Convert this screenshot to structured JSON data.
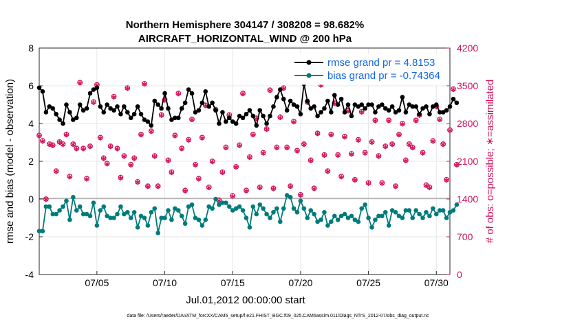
{
  "chart_data": {
    "type": "line",
    "title_line1": "Northern Hemisphere 304147 / 308208 = 98.682%",
    "title_line2": "AIRCRAFT_HORIZONTAL_WIND @ 200 hPa",
    "xlabel": "Jul.01,2012 00:00:00 start",
    "ylabel_left": "rmse and bias (model - observation)",
    "ylabel_right": "# of obs: o=possible; ∗=assimilated",
    "footnote": "data file: /Users/raeder/DAI/ATM_forcXX/CAM6_setup/f.e21.FHIST_BGC.f09_025.CAM6assim.011/Diags_NTrS_2012-07/obs_diag_output.nc",
    "x_range_days": [
      0.75,
      31.0
    ],
    "xticks": [
      {
        "day": 5,
        "label": "07/05"
      },
      {
        "day": 10,
        "label": "07/10"
      },
      {
        "day": 15,
        "label": "07/15"
      },
      {
        "day": 20,
        "label": "07/20"
      },
      {
        "day": 25,
        "label": "07/25"
      },
      {
        "day": 30,
        "label": "07/30"
      }
    ],
    "ylim_left": [
      -4,
      8
    ],
    "yticks_left": [
      "-4",
      "-2",
      "0",
      "2",
      "4",
      "6",
      "8"
    ],
    "ylim_right": [
      0,
      4200
    ],
    "yticks_right": [
      "0",
      "700",
      "1400",
      "2100",
      "2800",
      "3500",
      "4200"
    ],
    "legend": [
      {
        "label": "rmse grand pr = 4.8153",
        "color": "#000000"
      },
      {
        "label": "bias grand pr = -0.74364",
        "color": "#007b7b"
      }
    ],
    "colors": {
      "rmse": "#000000",
      "bias": "#007b7b",
      "obs": "#d4105a",
      "zero_line": "#a8a8a8",
      "legend_text": "#1466e6"
    },
    "series": [
      {
        "name": "rmse",
        "axis": "left",
        "start_day": 0.75,
        "step_day": 0.25,
        "values": [
          5.9,
          5.7,
          4.6,
          4.9,
          4.8,
          4.5,
          4.2,
          4.0,
          5.0,
          4.6,
          4.2,
          4.3,
          5.0,
          4.7,
          4.8,
          5.6,
          5.8,
          5.9,
          4.9,
          4.6,
          5.0,
          4.8,
          4.7,
          4.9,
          4.5,
          4.9,
          4.6,
          4.3,
          4.5,
          4.9,
          4.5,
          4.2,
          4.1,
          3.9,
          5.2,
          5.0,
          4.8,
          5.6,
          4.8,
          4.2,
          4.3,
          4.3,
          4.8,
          5.1,
          5.8,
          5.6,
          4.6,
          4.7,
          5.1,
          5.7,
          4.9,
          5.1,
          4.7,
          4.0,
          4.6,
          4.1,
          4.3,
          4.1,
          4.0,
          4.4,
          4.3,
          4.5,
          4.7,
          4.4,
          3.9,
          4.7,
          4.4,
          4.0,
          4.4,
          4.9,
          5.4,
          5.8,
          5.3,
          4.7,
          5.2,
          5.0,
          4.9,
          4.5,
          6.1,
          5.2,
          4.8,
          4.9,
          4.4,
          4.6,
          4.8,
          5.2,
          4.6,
          5.5,
          5.0,
          5.3,
          4.6,
          5.0,
          4.4,
          5.0,
          4.9,
          5.0,
          4.8,
          5.0,
          5.0,
          4.6,
          4.9,
          5.0,
          4.8,
          4.7,
          4.9,
          4.6,
          4.7,
          5.4,
          4.6,
          5.0,
          4.9,
          4.9,
          4.5,
          4.8,
          4.9,
          4.5,
          4.9,
          5.0,
          4.6,
          4.6,
          4.7,
          4.9,
          5.3,
          5.1
        ]
      },
      {
        "name": "bias",
        "axis": "left",
        "start_day": 0.75,
        "step_day": 0.25,
        "values": [
          -1.7,
          -1.7,
          -0.4,
          -0.4,
          -0.8,
          -0.8,
          -0.6,
          -0.4,
          -0.1,
          -1.1,
          0.1,
          -0.6,
          -0.4,
          -0.8,
          -0.8,
          -0.9,
          -0.2,
          -1.4,
          -0.6,
          -0.4,
          -0.9,
          -1.0,
          -1.0,
          -0.8,
          -0.4,
          -0.8,
          -0.7,
          -1.0,
          -0.7,
          -1.5,
          -0.9,
          -1.0,
          -1.4,
          -0.7,
          -0.5,
          -1.8,
          -1.0,
          -1.0,
          -0.6,
          -1.1,
          -0.5,
          -0.6,
          -0.9,
          -1.3,
          -0.4,
          -0.3,
          -1.0,
          -1.1,
          -1.4,
          -1.1,
          -0.4,
          -0.5,
          0.0,
          -0.3,
          -0.2,
          -0.2,
          -0.4,
          -0.6,
          -0.5,
          -0.4,
          -0.6,
          -1.0,
          -1.5,
          -0.4,
          -0.8,
          -0.3,
          -0.5,
          -0.8,
          -1.0,
          -0.7,
          -0.5,
          -1.2,
          -0.5,
          0.2,
          0.1,
          -0.5,
          -0.7,
          -0.1,
          -0.5,
          -1.0,
          -0.6,
          -0.8,
          -1.2,
          -1.1,
          -0.7,
          -1.4,
          -1.2,
          -0.9,
          -1.1,
          -0.9,
          -0.8,
          -1.0,
          -0.9,
          -1.1,
          -1.2,
          -0.5,
          -0.3,
          -1.0,
          -1.5,
          -1.1,
          -0.9,
          -0.9,
          -0.7,
          -1.4,
          -0.6,
          -0.7,
          -0.9,
          -1.0,
          -0.6,
          -0.6,
          -1.0,
          -0.6,
          -0.8,
          -1.0,
          -0.7,
          -0.9,
          -0.5,
          -0.8,
          -0.6,
          -0.6,
          -1.0,
          -0.7,
          -0.6,
          -0.3
        ]
      },
      {
        "name": "obs_possible",
        "axis": "right",
        "marker": "o",
        "start_day": 0.75,
        "step_day": 0.25,
        "values": [
          2580,
          2480,
          1400,
          2420,
          2400,
          1920,
          2460,
          2420,
          2600,
          1820,
          2420,
          2340,
          3560,
          2340,
          1780,
          2380,
          3200,
          3520,
          2540,
          2160,
          2060,
          2380,
          3300,
          2340,
          1800,
          2200,
          3460,
          2040,
          2160,
          1720,
          2600,
          3540,
          1640,
          2660,
          2200,
          1640,
          2960,
          3240,
          2120,
          1900,
          2580,
          3360,
          2340,
          1560,
          2500,
          2880,
          2040,
          1780,
          2540,
          3140,
          1620,
          2100,
          3060,
          1380,
          1900,
          2360,
          2960,
          1460,
          2000,
          2400,
          3360,
          1560,
          2180,
          2600,
          2900,
          1620,
          2260,
          2700,
          3420,
          1600,
          2360,
          2920,
          3460,
          2360,
          1640,
          2840,
          2300,
          1480,
          2420,
          3200,
          2120,
          1600,
          2620,
          3520,
          2220,
          1920,
          2600,
          3180,
          2220,
          1820,
          2560,
          3040,
          2240,
          1760,
          2500,
          3020,
          2260,
          1700,
          2460,
          2860,
          2200,
          1700,
          2380,
          2860,
          2420,
          1640,
          2600,
          2800,
          2120,
          2420,
          2360,
          2860,
          2960,
          2260,
          1660,
          1620,
          2480,
          3120,
          2880,
          2420,
          1760,
          2680,
          3440,
          2040
        ]
      },
      {
        "name": "obs_assimilated",
        "axis": "right",
        "marker": "*",
        "start_day": 0.75,
        "step_day": 0.25,
        "values": [
          2570,
          2470,
          1390,
          2410,
          2390,
          1910,
          2450,
          2410,
          2590,
          1810,
          2410,
          2330,
          3550,
          2330,
          1770,
          2370,
          3190,
          3510,
          2530,
          2150,
          2050,
          2370,
          3290,
          2330,
          1790,
          2190,
          3450,
          2030,
          2150,
          1710,
          2590,
          3530,
          1630,
          2650,
          2190,
          1630,
          2950,
          3230,
          2110,
          1890,
          2570,
          3350,
          2330,
          1550,
          2490,
          2870,
          2030,
          1770,
          2530,
          3130,
          1610,
          2090,
          3050,
          1370,
          1890,
          2350,
          2950,
          1450,
          1990,
          2390,
          3350,
          1550,
          2170,
          2590,
          2890,
          1610,
          2250,
          2690,
          3410,
          1590,
          2350,
          2910,
          3450,
          2350,
          1630,
          2830,
          2290,
          1470,
          2410,
          3190,
          2110,
          1590,
          2610,
          3510,
          2210,
          1910,
          2590,
          3170,
          2210,
          1810,
          2550,
          3030,
          2230,
          1750,
          2490,
          3010,
          2250,
          1690,
          2450,
          2850,
          2190,
          1690,
          2370,
          2850,
          2410,
          1630,
          2590,
          2790,
          2110,
          2410,
          2350,
          2850,
          2950,
          2250,
          1650,
          1610,
          2470,
          3110,
          2870,
          2410,
          1750,
          2670,
          3430,
          2030
        ]
      }
    ]
  }
}
